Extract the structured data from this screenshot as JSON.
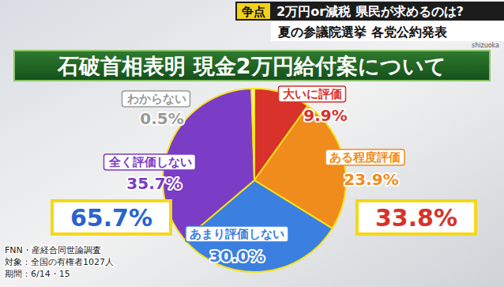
{
  "header": {
    "tag": "争点",
    "headline": "2万円or減税 県民が求めるのは?",
    "subheadline": "夏の参議院選挙 各党公約発表",
    "station": "shizuoka"
  },
  "chart_data": {
    "type": "pie",
    "title": "石破首相表明 現金2万円給付案について",
    "categories": [
      "大いに評価",
      "ある程度評価",
      "あまり評価しない",
      "全く評価しない",
      "わからない"
    ],
    "values": [
      9.9,
      23.9,
      30.0,
      35.7,
      0.5
    ],
    "value_labels": [
      "9.9%",
      "23.9%",
      "30.0%",
      "35.7%",
      "0.5%"
    ],
    "colors": [
      "#d8322b",
      "#f08c1c",
      "#3b7fe0",
      "#7b3cc6",
      "#ffffff"
    ],
    "data_labels": true,
    "groups": [
      {
        "value": 65.7,
        "label": "65.7%",
        "color": "#2a63d0"
      },
      {
        "value": 33.8,
        "label": "33.8%",
        "color": "#d8322b"
      }
    ],
    "notes": [
      "FNN・産経合同世論調査",
      "対象：全国の有権者1027人",
      "期間：6/14・15"
    ]
  }
}
